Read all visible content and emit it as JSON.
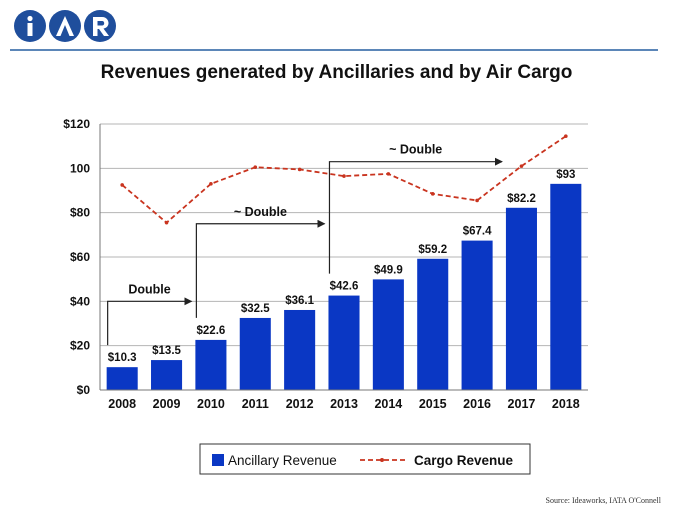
{
  "brand": {
    "logo_text": "IATA",
    "color": "#1f4e9c"
  },
  "title": "Revenues generated by Ancillaries and by Air Cargo",
  "source": "Source: Ideaworks, IATA O'Connell",
  "chart_data": {
    "type": "bar",
    "categories": [
      "2008",
      "2009",
      "2010",
      "2011",
      "2012",
      "2013",
      "2014",
      "2015",
      "2016",
      "2017",
      "2018"
    ],
    "series": [
      {
        "name": "Ancillary Revenue",
        "type": "bar",
        "color": "#0a37c4",
        "values": [
          10.3,
          13.5,
          22.6,
          32.5,
          36.1,
          42.6,
          49.9,
          59.2,
          67.4,
          82.2,
          93
        ],
        "labels": [
          "$10.3",
          "$13.5",
          "$22.6",
          "$32.5",
          "$36.1",
          "$42.6",
          "$49.9",
          "$59.2",
          "$67.4",
          "$82.2",
          "$93"
        ]
      },
      {
        "name": "Cargo Revenue",
        "type": "line",
        "style": "dashed",
        "color": "#c9341f",
        "values": [
          92.5,
          75.5,
          93,
          100.5,
          99.5,
          96.5,
          97.5,
          88.5,
          85.5,
          101,
          114.5
        ]
      }
    ],
    "ylim": [
      0,
      120
    ],
    "yticks": [
      {
        "value": 0,
        "label": "$0"
      },
      {
        "value": 20,
        "label": "$20"
      },
      {
        "value": 40,
        "label": "$40"
      },
      {
        "value": 60,
        "label": "$60"
      },
      {
        "value": 80,
        "label": "$80"
      },
      {
        "value": 100,
        "label": "100"
      },
      {
        "value": 120,
        "label": "$120"
      }
    ],
    "grid": true,
    "legend": "bottom-center",
    "annotations": [
      {
        "text": "Double",
        "from": "2008",
        "to": "2010",
        "value": 40
      },
      {
        "text": "~ Double",
        "from": "2010",
        "to": "2013",
        "value": 75
      },
      {
        "text": "~ Double",
        "from": "2013",
        "to": "2017",
        "value": 103
      }
    ]
  }
}
